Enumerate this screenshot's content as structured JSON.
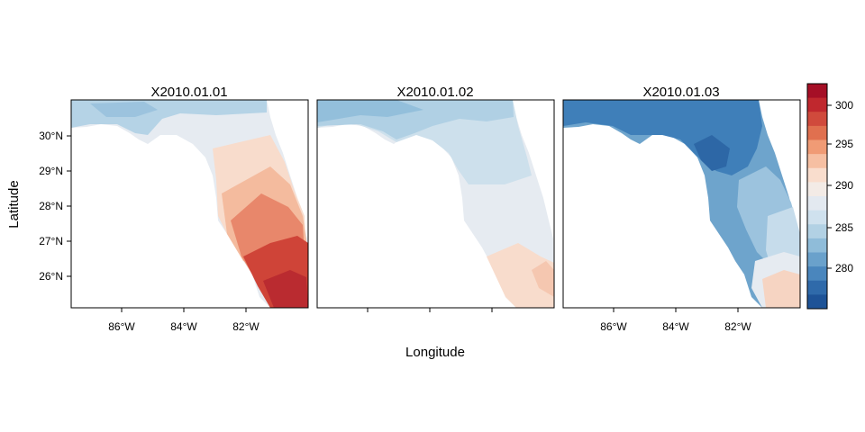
{
  "figure": {
    "xlabel": "Longitude",
    "ylabel": "Latitude"
  },
  "panels": [
    {
      "title": "X2010.01.01",
      "scheme": "warm"
    },
    {
      "title": "X2010.01.02",
      "scheme": "mild"
    },
    {
      "title": "X2010.01.03",
      "scheme": "cold"
    }
  ],
  "lat_ticks": [
    "30°N",
    "29°N",
    "28°N",
    "27°N",
    "26°N"
  ],
  "lon_ticks": [
    "86°W",
    "84°W",
    "82°W"
  ],
  "colorbar": {
    "labels": [
      "300",
      "295",
      "290",
      "285",
      "280"
    ],
    "colors": [
      "#a50f26",
      "#c0282e",
      "#d04a3c",
      "#e0704f",
      "#f09b75",
      "#f6bfa2",
      "#f9ddcd",
      "#f3ebe6",
      "#e3e9f0",
      "#cfe1ee",
      "#b2d1e4",
      "#8fbcd9",
      "#6aa1cb",
      "#4a86bd",
      "#2f6aaa",
      "#1e5397"
    ]
  }
}
